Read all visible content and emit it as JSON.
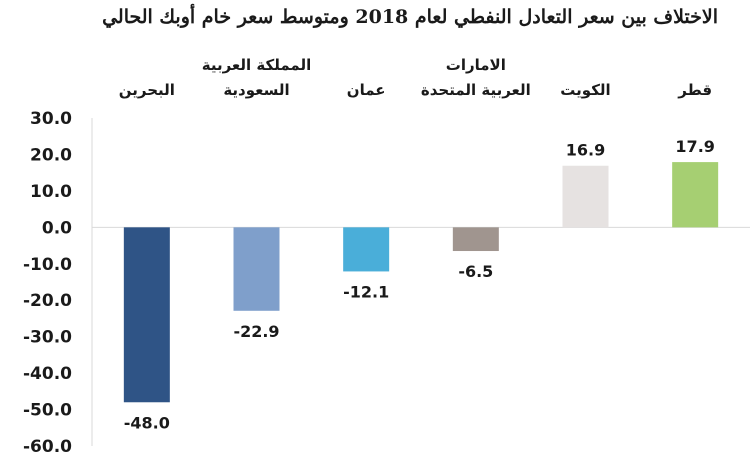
{
  "chart_data": {
    "type": "bar",
    "title": "الاختلاف بين سعر التعادل النفطي لعام 2018 ومتوسط سعر خام أوبك الحالي",
    "xlabel": "",
    "ylabel": "",
    "ylim": [
      -60,
      30
    ],
    "yticks": [
      "30.0",
      "20.0",
      "10.0",
      "0.0",
      "-10.0",
      "-20.0",
      "-30.0",
      "-40.0",
      "-50.0",
      "-60.0"
    ],
    "ytick_values": [
      30,
      20,
      10,
      0,
      -10,
      -20,
      -30,
      -40,
      -50,
      -60
    ],
    "categories": [
      [
        "البحرين"
      ],
      [
        "المملكة العربية",
        "السعودية"
      ],
      [
        "عمان"
      ],
      [
        "الامارات",
        "العربية المتحدة"
      ],
      [
        "الكويت"
      ],
      [
        "قطر"
      ]
    ],
    "values": [
      -48.0,
      -22.9,
      -12.1,
      -6.5,
      16.9,
      17.9
    ],
    "value_labels": [
      "-48.0",
      "-22.9",
      "-12.1",
      "-6.5",
      "16.9",
      "17.9"
    ],
    "colors": [
      "#2f5486",
      "#7f9fcb",
      "#4aaed9",
      "#a0958f",
      "#e6e2e1",
      "#a6cf72"
    ],
    "grid": false,
    "legend": "none"
  }
}
